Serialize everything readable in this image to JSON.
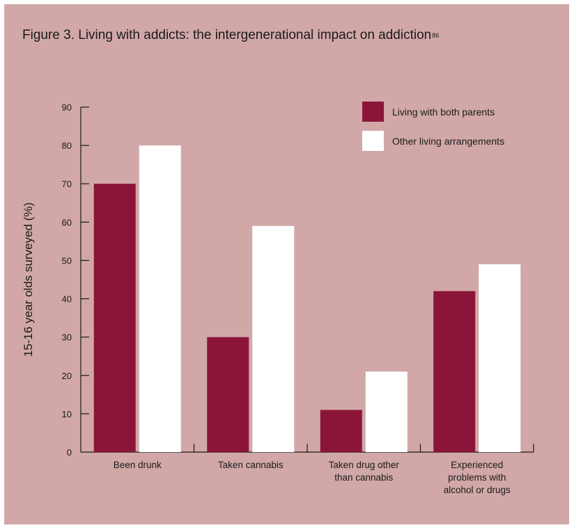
{
  "figure": {
    "title": "Figure 3. Living with addicts: the intergenerational impact on addiction",
    "footnote": "86"
  },
  "colors": {
    "background": "#d1a8a7",
    "series_a": "#8b1538",
    "series_b": "#ffffff",
    "axis": "#1a1a1a"
  },
  "chart_data": {
    "type": "bar",
    "ylabel": "15-16 year olds surveyed (%)",
    "ylim": [
      0,
      90
    ],
    "yticks": [
      0,
      10,
      20,
      30,
      40,
      50,
      60,
      70,
      80,
      90
    ],
    "categories": [
      [
        "Been drunk"
      ],
      [
        "Taken cannabis"
      ],
      [
        "Taken drug other",
        "than cannabis"
      ],
      [
        "Experienced",
        "problems with",
        "alcohol or drugs"
      ]
    ],
    "series": [
      {
        "name": "Living with both parents",
        "values": [
          70,
          30,
          11,
          42
        ]
      },
      {
        "name": "Other living arrangements",
        "values": [
          80,
          59,
          21,
          49
        ]
      }
    ],
    "legend": "top-right",
    "grid": false
  }
}
